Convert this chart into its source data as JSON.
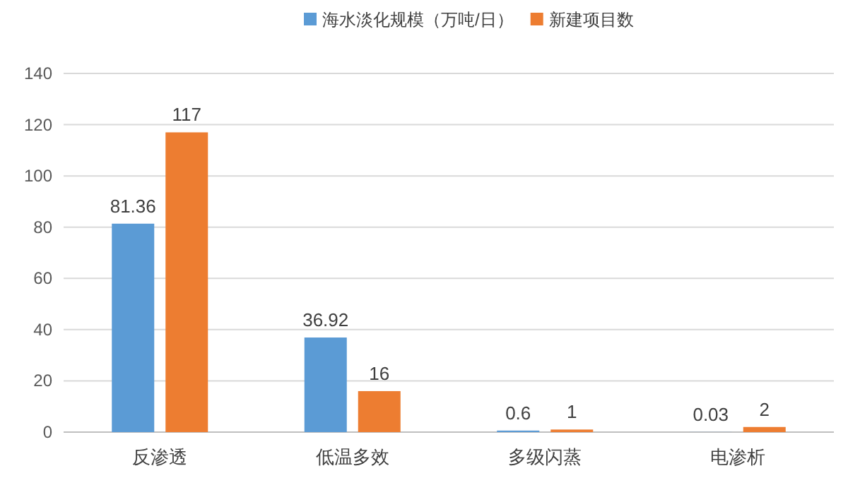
{
  "chart_data": {
    "type": "bar",
    "categories": [
      "反渗透",
      "低温多效",
      "多级闪蒸",
      "电渗析"
    ],
    "series": [
      {
        "name": "海水淡化规模（万吨/日）",
        "color": "#5b9bd5",
        "values": [
          81.36,
          36.92,
          0.6,
          0.03
        ]
      },
      {
        "name": "新建项目数",
        "color": "#ed7d31",
        "values": [
          117,
          16,
          1,
          2
        ]
      }
    ],
    "ylim": [
      0,
      140
    ],
    "yticks": [
      0,
      20,
      40,
      60,
      80,
      100,
      120,
      140
    ],
    "grid": "y",
    "legend": "top",
    "data_labels": true
  }
}
